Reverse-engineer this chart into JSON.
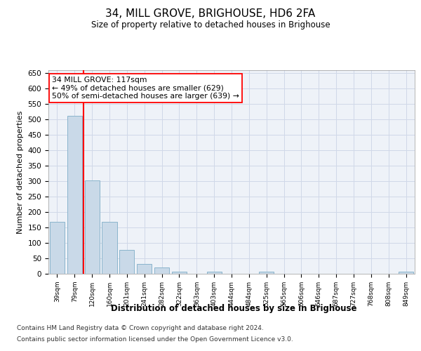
{
  "title": "34, MILL GROVE, BRIGHOUSE, HD6 2FA",
  "subtitle": "Size of property relative to detached houses in Brighouse",
  "xlabel": "Distribution of detached houses by size in Brighouse",
  "ylabel": "Number of detached properties",
  "bar_color": "#c9d9e8",
  "bar_edge_color": "#8ab4cc",
  "grid_color": "#d0d8e8",
  "background_color": "#eef2f8",
  "property_line_color": "red",
  "annotation_text": "34 MILL GROVE: 117sqm\n← 49% of detached houses are smaller (629)\n50% of semi-detached houses are larger (639) →",
  "categories": [
    "39sqm",
    "79sqm",
    "120sqm",
    "160sqm",
    "201sqm",
    "241sqm",
    "282sqm",
    "322sqm",
    "363sqm",
    "403sqm",
    "444sqm",
    "484sqm",
    "525sqm",
    "565sqm",
    "606sqm",
    "646sqm",
    "687sqm",
    "727sqm",
    "768sqm",
    "808sqm",
    "849sqm"
  ],
  "values": [
    168,
    512,
    302,
    168,
    78,
    31,
    20,
    7,
    0,
    7,
    0,
    0,
    6,
    0,
    0,
    0,
    0,
    0,
    0,
    0,
    6
  ],
  "ylim": [
    0,
    660
  ],
  "yticks": [
    0,
    50,
    100,
    150,
    200,
    250,
    300,
    350,
    400,
    450,
    500,
    550,
    600,
    650
  ],
  "footnote_line1": "Contains HM Land Registry data © Crown copyright and database right 2024.",
  "footnote_line2": "Contains public sector information licensed under the Open Government Licence v3.0."
}
